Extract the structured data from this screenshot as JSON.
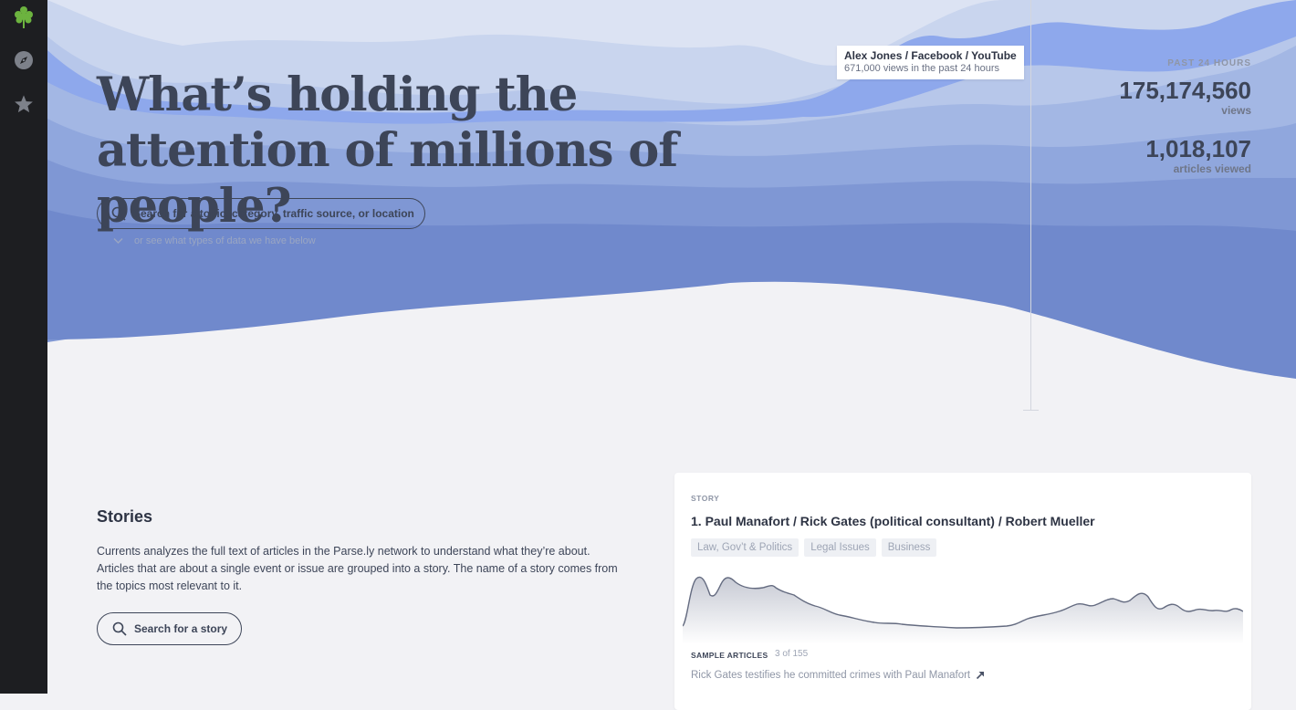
{
  "hero": {
    "headline": "What’s holding the attention of millions of people?",
    "search_placeholder": "Search for a topic, category, traffic source, or location",
    "or_see": "or see what types of data we have below"
  },
  "tooltip": {
    "title": "Alex Jones / Facebook / YouTube",
    "subtitle": "671,000 views in the past 24 hours"
  },
  "stats": {
    "label": "PAST 24 HOURS",
    "views": "175,174,560",
    "views_label": "views",
    "articles": "1,018,107",
    "articles_label": "articles viewed"
  },
  "stories": {
    "title": "Stories",
    "description": "Currents analyzes the full text of articles in the Parse.ly network to understand what they’re about. Articles that are about a single event or issue are grouped into a story. The name of a story comes from the topics most relevant to it.",
    "search_label": "Search for a story"
  },
  "story_card": {
    "label": "STORY",
    "title": "1. Paul Manafort / Rick Gates (political consultant) / Robert Mueller",
    "tags": [
      "Law, Gov’t & Politics",
      "Legal Issues",
      "Business"
    ],
    "sample_label": "SAMPLE ARTICLES",
    "sample_count": "3 of 155",
    "sample_article": "Rick Gates testifies he committed crimes with Paul Manafort"
  },
  "colors": {
    "sidebar": "#1d1e21",
    "background": "#f2f2f5",
    "stream_dark": "#7089cc",
    "stream_light": "#c9d5ee",
    "accent_green": "#6cb33f"
  },
  "icons": [
    "parsely-logo-icon",
    "compass-icon",
    "star-icon",
    "search-icon",
    "chevron-down-icon",
    "external-link-icon"
  ]
}
